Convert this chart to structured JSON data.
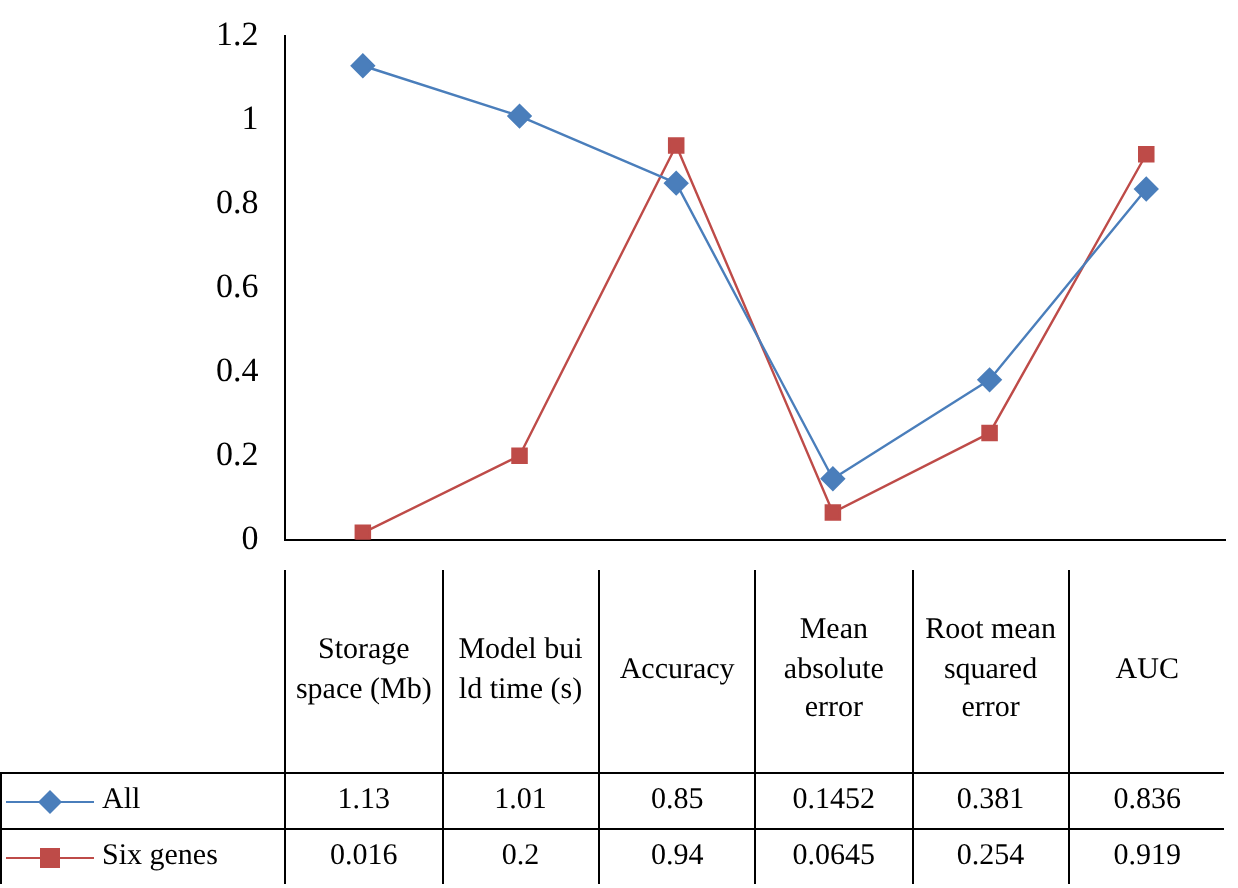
{
  "chart_data": {
    "type": "line",
    "categories": [
      "Storage space (Mb)",
      "Model bui ld time (s)",
      "Accuracy",
      "Mean absolute error",
      "Root mean squared error",
      "AUC"
    ],
    "series": [
      {
        "name": "All",
        "color": "#4a7ebb",
        "marker": "diamond",
        "values": [
          1.13,
          1.01,
          0.85,
          0.1452,
          0.381,
          0.836
        ]
      },
      {
        "name": "Six genes",
        "color": "#be4b48",
        "marker": "square",
        "values": [
          0.016,
          0.2,
          0.94,
          0.0645,
          0.254,
          0.919
        ]
      }
    ],
    "ylim": [
      0,
      1.2
    ],
    "yticks": [
      0,
      0.2,
      0.4,
      0.6,
      0.8,
      1,
      1.2
    ],
    "grid": false,
    "legend": "bottom",
    "data_labels": true,
    "line_style": "solid"
  }
}
